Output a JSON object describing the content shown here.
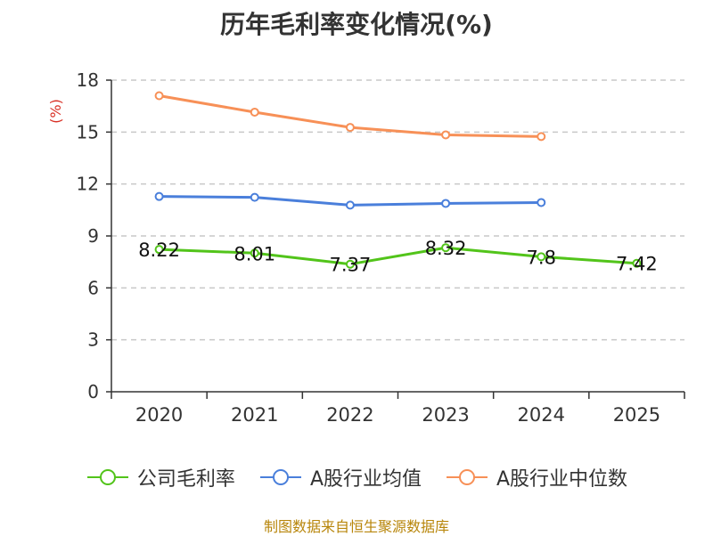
{
  "chart_data": {
    "type": "line",
    "title": "历年毛利率变化情况(%)",
    "ylabel": "(%)",
    "ylim": [
      0,
      18
    ],
    "yticks": [
      0,
      3,
      6,
      9,
      12,
      15,
      18
    ],
    "categories": [
      "2020",
      "2021",
      "2022",
      "2023",
      "2024",
      "2025"
    ],
    "grid": "horizontal-dashed",
    "legend_position": "bottom",
    "series": [
      {
        "name": "公司毛利率",
        "color": "#52c41a",
        "values": [
          8.22,
          8.01,
          7.37,
          8.32,
          7.8,
          7.42
        ],
        "labels": [
          "8.22",
          "8.01",
          "7.37",
          "8.32",
          "7.8",
          "7.42"
        ]
      },
      {
        "name": "A股行业均值",
        "color": "#4a7fdb",
        "values": [
          11.28,
          11.23,
          10.78,
          10.88,
          10.93,
          null
        ]
      },
      {
        "name": "A股行业中位数",
        "color": "#f79057",
        "values": [
          17.1,
          16.15,
          15.27,
          14.84,
          14.74,
          null
        ]
      }
    ],
    "source": "制图数据来自恒生聚源数据库"
  }
}
